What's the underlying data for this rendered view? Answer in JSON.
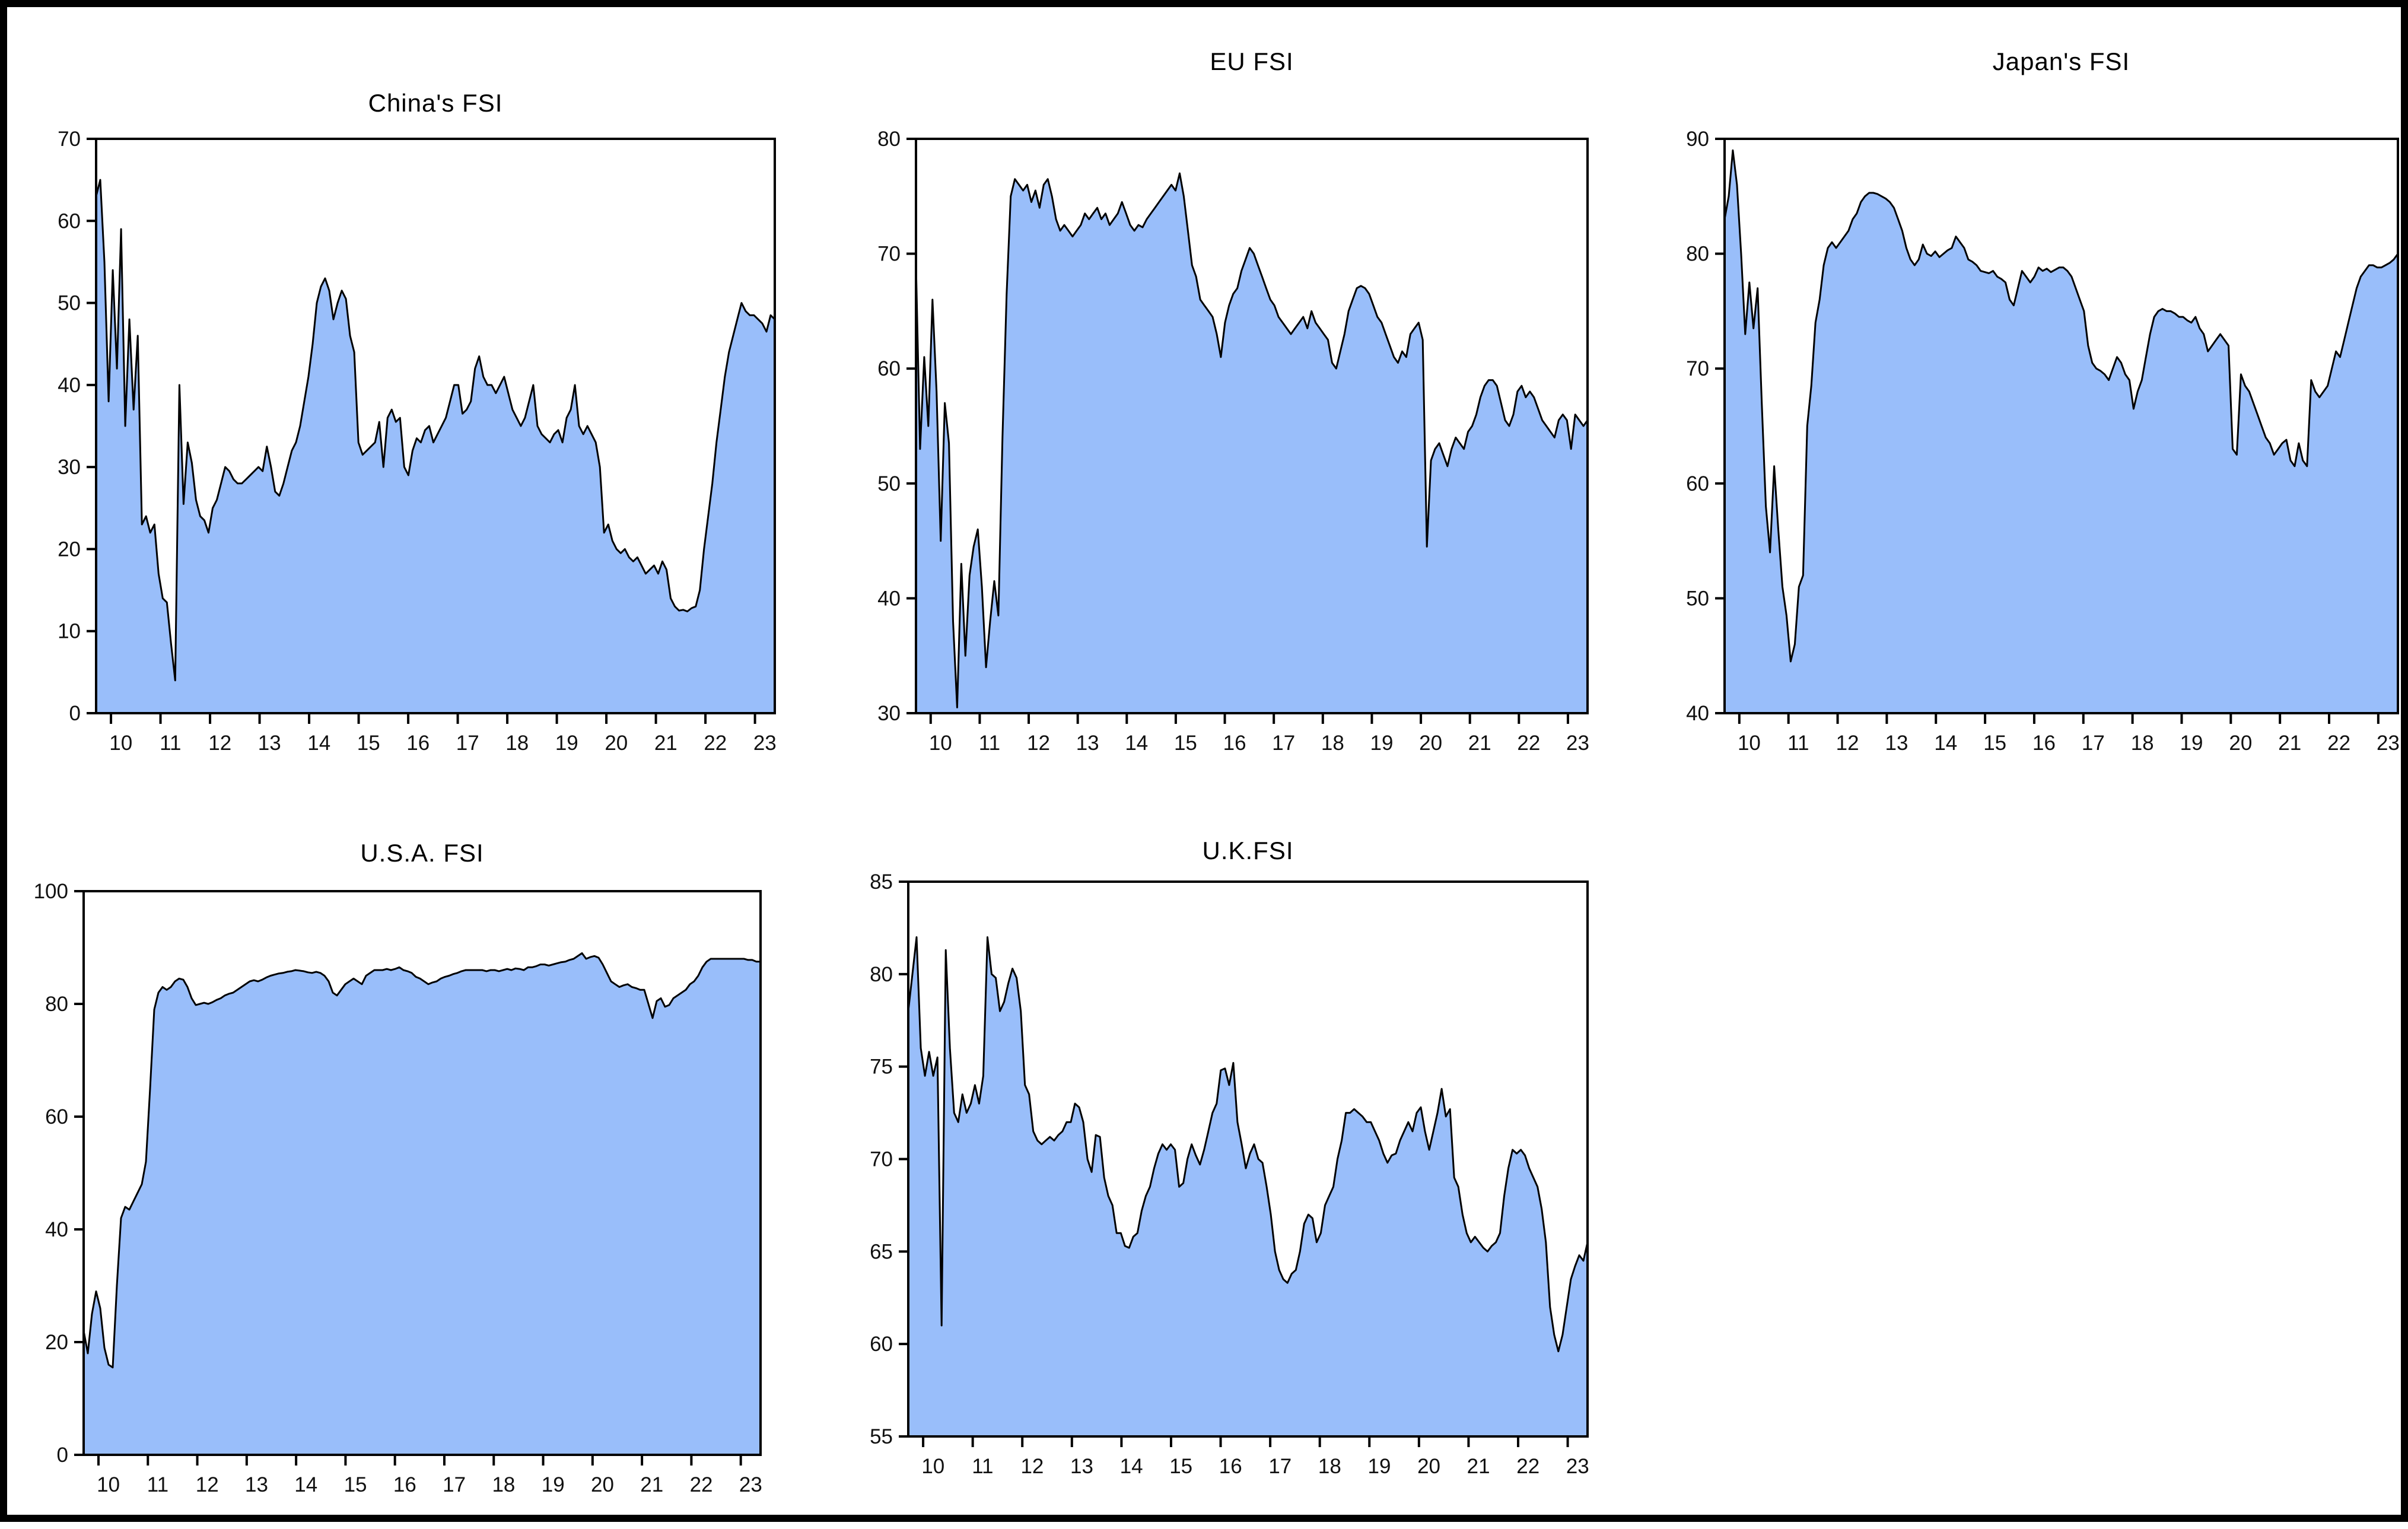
{
  "figure": {
    "background_color": "#ffffff",
    "border_color": "#000000",
    "area_fill_color": "#99befa",
    "line_color": "#000000",
    "axis_color": "#000000",
    "tick_label_color": "#111111"
  },
  "x_axis_labels": [
    "10",
    "11",
    "12",
    "13",
    "14",
    "15",
    "16",
    "17",
    "18",
    "19",
    "20",
    "21",
    "22",
    "23"
  ],
  "chart_data": [
    {
      "type": "area",
      "title": "China's FSI",
      "ylim": [
        0,
        70
      ],
      "yticks": [
        0,
        10,
        20,
        30,
        40,
        50,
        60,
        70
      ],
      "x0": 2009.7,
      "x1": 2023.4,
      "xtick_years": [
        2010,
        2011,
        2012,
        2013,
        2014,
        2015,
        2016,
        2017,
        2018,
        2019,
        2020,
        2021,
        2022,
        2023
      ],
      "values": [
        63,
        65,
        55,
        38,
        54,
        42,
        59,
        35,
        48,
        37,
        46,
        23,
        24,
        22,
        23,
        17,
        14,
        13.5,
        8.5,
        4,
        40,
        25.5,
        33,
        30.5,
        26,
        24,
        23.5,
        22,
        25,
        26,
        28,
        30,
        29.5,
        28.5,
        28,
        28,
        28.5,
        29,
        29.5,
        30,
        29.5,
        32.5,
        30,
        27,
        26.5,
        28,
        30,
        32,
        33,
        35,
        38,
        41,
        45,
        50,
        52,
        53,
        51.5,
        48,
        50,
        51.5,
        50.5,
        46,
        44,
        33,
        31.5,
        32,
        32.5,
        33,
        35.5,
        30,
        36,
        37,
        35.5,
        36,
        30,
        29,
        32,
        33.5,
        33,
        34.5,
        35,
        33,
        34,
        35,
        36,
        38,
        40,
        40,
        36.5,
        37,
        38,
        42,
        43.5,
        41,
        40,
        40,
        39,
        40,
        41,
        39,
        37,
        36,
        35,
        36,
        38,
        40,
        35,
        34,
        33.5,
        33,
        34,
        34.5,
        33,
        36,
        37,
        40,
        35,
        34,
        35,
        34,
        33,
        30,
        22,
        23,
        21,
        20,
        19.5,
        20,
        19,
        18.5,
        19,
        18,
        17,
        17.5,
        18,
        17,
        18.5,
        17.5,
        14,
        13,
        12.5,
        12.6,
        12.4,
        12.8,
        13,
        15,
        20,
        24,
        28,
        33,
        37,
        41,
        44,
        46,
        48,
        50,
        49,
        48.5,
        48.5,
        48,
        47.5,
        46.5,
        48.5,
        48
      ]
    },
    {
      "type": "area",
      "title": "EU FSI",
      "ylim": [
        30,
        80
      ],
      "yticks": [
        30,
        40,
        50,
        60,
        70,
        80
      ],
      "x0": 2009.7,
      "x1": 2023.4,
      "xtick_years": [
        2010,
        2011,
        2012,
        2013,
        2014,
        2015,
        2016,
        2017,
        2018,
        2019,
        2020,
        2021,
        2022,
        2023
      ],
      "values": [
        69,
        53,
        61,
        55,
        66,
        58,
        45,
        57,
        53.5,
        38,
        30.5,
        43,
        35,
        42,
        44.5,
        46,
        41,
        34,
        38,
        41.5,
        38.5,
        54,
        66.5,
        75,
        76.5,
        76,
        75.5,
        76,
        74.5,
        75.5,
        74,
        76,
        76.5,
        75,
        73,
        72,
        72.5,
        72,
        71.5,
        72,
        72.5,
        73.5,
        73,
        73.5,
        74,
        73,
        73.5,
        72.5,
        73,
        73.5,
        74.5,
        73.5,
        72.5,
        72,
        72.5,
        72.3,
        73,
        73.5,
        74,
        74.5,
        75,
        75.5,
        76,
        75.5,
        77,
        75,
        72,
        69,
        68,
        66,
        65.5,
        65,
        64.5,
        63,
        61,
        64,
        65.5,
        66.5,
        67,
        68.5,
        69.5,
        70.5,
        70,
        69,
        68,
        67,
        66,
        65.5,
        64.5,
        64,
        63.5,
        63,
        63.5,
        64,
        64.5,
        63.5,
        65,
        64,
        63.5,
        63,
        62.5,
        60.5,
        60,
        61.5,
        63,
        65,
        66,
        67,
        67.2,
        67,
        66.5,
        65.5,
        64.5,
        64,
        63,
        62,
        61,
        60.5,
        61.5,
        61,
        63,
        63.5,
        64,
        62.5,
        44.5,
        52,
        53,
        53.5,
        52.5,
        51.5,
        53,
        54,
        53.5,
        53,
        54.5,
        55,
        56,
        57.5,
        58.5,
        59,
        59,
        58.5,
        57,
        55.5,
        55,
        56,
        58,
        58.5,
        57.5,
        58,
        57.5,
        56.5,
        55.5,
        55,
        54.5,
        54,
        55.5,
        56,
        55.5,
        53,
        56,
        55.5,
        55,
        55.5
      ]
    },
    {
      "type": "area",
      "title": "Japan's FSI",
      "ylim": [
        40,
        90
      ],
      "yticks": [
        40,
        50,
        60,
        70,
        80,
        90
      ],
      "x0": 2009.7,
      "x1": 2023.4,
      "xtick_years": [
        2010,
        2011,
        2012,
        2013,
        2014,
        2015,
        2016,
        2017,
        2018,
        2019,
        2020,
        2021,
        2022,
        2023
      ],
      "values": [
        83,
        85,
        89,
        86,
        80,
        73,
        77.5,
        73.5,
        77,
        67,
        58,
        54,
        61.5,
        56,
        51,
        48.5,
        44.5,
        46,
        51,
        52,
        65,
        68.5,
        74,
        76,
        79,
        80.5,
        81,
        80.5,
        81,
        81.5,
        82,
        83,
        83.5,
        84.5,
        85,
        85.3,
        85.3,
        85.2,
        85,
        84.8,
        84.5,
        84,
        83,
        82,
        80.5,
        79.5,
        79,
        79.5,
        80.8,
        80,
        79.8,
        80.2,
        79.7,
        80,
        80.3,
        80.5,
        81.5,
        81,
        80.5,
        79.5,
        79.3,
        79,
        78.5,
        78.4,
        78.3,
        78.5,
        78,
        77.8,
        77.5,
        76,
        75.5,
        77,
        78.5,
        78,
        77.5,
        78,
        78.8,
        78.5,
        78.7,
        78.4,
        78.6,
        78.8,
        78.8,
        78.5,
        78,
        77,
        76,
        75,
        72,
        70.5,
        70,
        69.8,
        69.5,
        69,
        70,
        71,
        70.5,
        69.5,
        69,
        66.5,
        68,
        69,
        71,
        73,
        74.5,
        75,
        75.2,
        75,
        75,
        74.8,
        74.5,
        74.5,
        74.2,
        74,
        74.5,
        73.5,
        73,
        71.5,
        72,
        72.5,
        73,
        72.5,
        72,
        63,
        62.5,
        69.5,
        68.5,
        68,
        67,
        66,
        65,
        64,
        63.5,
        62.5,
        63,
        63.5,
        63.8,
        62,
        61.5,
        63.5,
        62,
        61.5,
        69,
        68,
        67.5,
        68,
        68.5,
        70,
        71.5,
        71,
        72.5,
        74,
        75.5,
        77,
        78,
        78.5,
        79,
        79,
        78.8,
        78.8,
        79,
        79.2,
        79.5,
        80
      ]
    },
    {
      "type": "area",
      "title": "U.S.A. FSI",
      "ylim": [
        0,
        100
      ],
      "yticks": [
        0,
        20,
        40,
        60,
        80,
        100
      ],
      "x0": 2009.7,
      "x1": 2023.4,
      "xtick_years": [
        2010,
        2011,
        2012,
        2013,
        2014,
        2015,
        2016,
        2017,
        2018,
        2019,
        2020,
        2021,
        2022,
        2023
      ],
      "values": [
        22,
        18,
        25,
        29,
        26,
        19,
        16,
        15.5,
        30,
        42,
        44,
        43.5,
        45,
        46.5,
        48,
        52,
        65,
        79,
        82,
        83,
        82.5,
        83,
        84,
        84.5,
        84.3,
        83,
        81,
        79.8,
        80,
        80.2,
        80,
        80.3,
        80.7,
        81,
        81.5,
        81.8,
        82,
        82.5,
        83,
        83.5,
        84,
        84.2,
        84,
        84.3,
        84.7,
        85,
        85.2,
        85.4,
        85.5,
        85.7,
        85.8,
        86,
        85.9,
        85.8,
        85.6,
        85.5,
        85.7,
        85.5,
        85,
        84,
        82,
        81.5,
        82.5,
        83.5,
        84,
        84.5,
        84,
        83.5,
        85,
        85.5,
        86,
        86,
        86,
        86.2,
        86,
        86.2,
        86.5,
        86,
        85.8,
        85.5,
        84.8,
        84.5,
        84,
        83.5,
        83.8,
        84,
        84.5,
        84.8,
        85,
        85.3,
        85.5,
        85.8,
        86,
        86,
        86,
        86,
        86,
        85.8,
        86,
        86,
        85.8,
        86,
        86.2,
        86,
        86.3,
        86.2,
        86,
        86.5,
        86.5,
        86.7,
        87,
        87,
        86.8,
        87,
        87.2,
        87.4,
        87.5,
        87.8,
        88,
        88.5,
        89,
        88,
        88.3,
        88.5,
        88.2,
        87,
        85.5,
        84,
        83.5,
        83,
        83.3,
        83.5,
        83,
        82.8,
        82.5,
        82.5,
        80,
        77.5,
        80.5,
        81,
        79.5,
        79.8,
        81,
        81.5,
        82,
        82.5,
        83.5,
        84,
        85,
        86.5,
        87.5,
        88,
        88,
        88,
        88,
        88,
        88,
        88,
        88,
        88,
        87.8,
        87.8,
        87.5,
        87.5
      ]
    },
    {
      "type": "area",
      "title": "U.K.FSI",
      "ylim": [
        55,
        85
      ],
      "yticks": [
        55,
        60,
        65,
        70,
        75,
        80,
        85
      ],
      "x0": 2009.7,
      "x1": 2023.4,
      "xtick_years": [
        2010,
        2011,
        2012,
        2013,
        2014,
        2015,
        2016,
        2017,
        2018,
        2019,
        2020,
        2021,
        2022,
        2023
      ],
      "values": [
        78,
        80,
        82,
        76,
        74.5,
        75.8,
        74.5,
        75.5,
        61,
        81.3,
        76,
        72.5,
        72,
        73.5,
        72.5,
        73,
        74,
        73,
        74.5,
        82,
        80,
        79.8,
        78,
        78.5,
        79.5,
        80.3,
        79.8,
        78,
        74,
        73.5,
        71.5,
        71,
        70.8,
        71,
        71.2,
        71,
        71.3,
        71.5,
        72,
        72,
        73,
        72.8,
        72,
        70,
        69.3,
        71.3,
        71.2,
        69,
        68,
        67.5,
        66,
        66,
        65.3,
        65.2,
        65.8,
        66,
        67.2,
        68,
        68.5,
        69.5,
        70.3,
        70.8,
        70.5,
        70.8,
        70.5,
        68.5,
        68.7,
        70,
        70.8,
        70.2,
        69.7,
        70.5,
        71.5,
        72.5,
        73,
        74.8,
        74.9,
        74,
        75.2,
        72,
        70.8,
        69.5,
        70.3,
        70.8,
        70,
        69.8,
        68.5,
        67,
        65,
        64,
        63.5,
        63.3,
        63.8,
        64,
        65,
        66.5,
        67,
        66.8,
        65.5,
        66,
        67.5,
        68,
        68.5,
        70,
        71,
        72.5,
        72.5,
        72.7,
        72.5,
        72.3,
        72,
        72,
        71.5,
        71,
        70.3,
        69.8,
        70.2,
        70.3,
        71,
        71.5,
        72,
        71.5,
        72.5,
        72.8,
        71.5,
        70.5,
        71.5,
        72.5,
        73.8,
        72.3,
        72.7,
        69,
        68.5,
        67,
        66,
        65.5,
        65.8,
        65.5,
        65.2,
        65,
        65.3,
        65.5,
        66,
        68,
        69.5,
        70.5,
        70.3,
        70.5,
        70.2,
        69.5,
        69,
        68.5,
        67.3,
        65.5,
        62,
        60.5,
        59.6,
        60.5,
        62,
        63.5,
        64.2,
        64.8,
        64.5,
        65.5
      ]
    }
  ]
}
